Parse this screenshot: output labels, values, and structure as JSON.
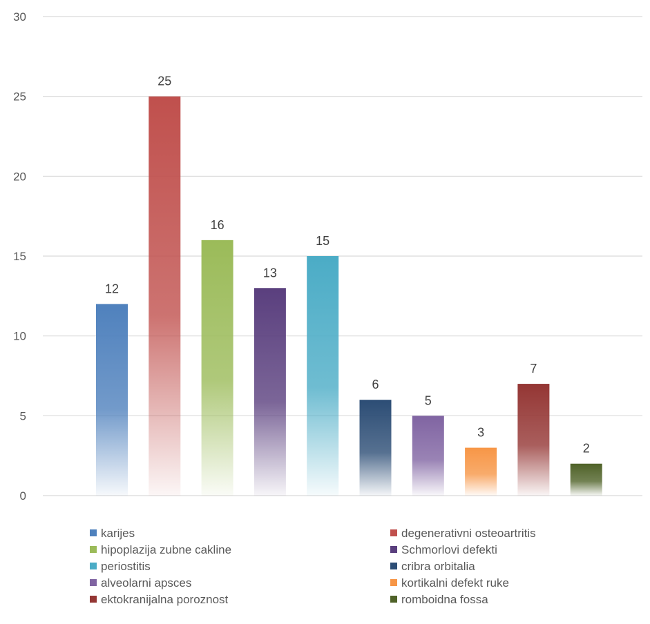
{
  "chart_data": {
    "type": "bar",
    "categories": [
      "karijes",
      "degenerativni osteoartritis",
      "hipoplazija zubne cakline",
      "Schmorlovi defekti",
      "periostitis",
      "cribra orbitalia",
      "alveolarni apsces",
      "kortikalni defekt ruke",
      "ektokranijalna poroznost",
      "romboidna fossa"
    ],
    "values": [
      12,
      25,
      16,
      13,
      15,
      6,
      5,
      3,
      7,
      2
    ],
    "value_labels": [
      "12",
      "25",
      "16",
      "13",
      "15",
      "6",
      "5",
      "3",
      "7",
      "2"
    ],
    "colors": [
      "#4f81bd",
      "#c0504d",
      "#9bbb59",
      "#5a3f7e",
      "#4bacc6",
      "#2c4d75",
      "#8064a2",
      "#f79646",
      "#943634",
      "#4f6228"
    ],
    "y_ticks": [
      0,
      5,
      10,
      15,
      20,
      25,
      30
    ],
    "y_tick_labels": [
      "0",
      "5",
      "10",
      "15",
      "20",
      "25",
      "30"
    ],
    "ylim": [
      0,
      30
    ],
    "grid": true,
    "legend_placement": "bottom",
    "legend_columns": 2,
    "title": "",
    "xlabel": "",
    "ylabel": ""
  }
}
